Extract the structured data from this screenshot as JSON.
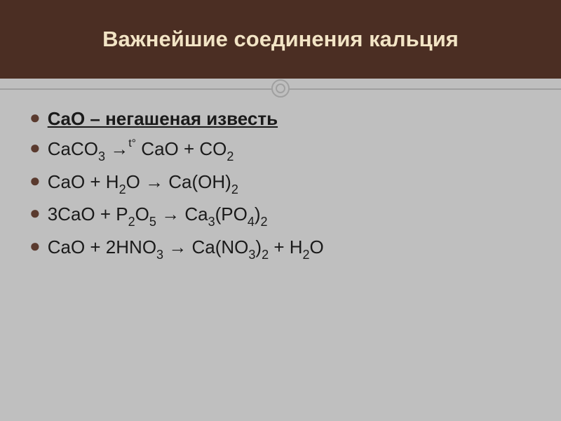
{
  "slide": {
    "title": "Важнейшие соединения кальция",
    "header_bg": "#4b2e23",
    "title_color": "#f2e4c5",
    "body_bg": "#bfbfbf",
    "bullet_color": "#5a3a2e",
    "text_color": "#1a1a1a",
    "divider_color": "#a0a0a0"
  },
  "items": [
    {
      "type": "heading",
      "plain": "CaO – негашеная известь",
      "html": "CaO – негашеная известь"
    },
    {
      "type": "formula",
      "plain": "CaCO3 →t° CaO + CO2",
      "html": "CaCO<sub>3</sub>  →<sup>t°</sup> CaO + CO<sub>2</sub>"
    },
    {
      "type": "formula",
      "plain": "CaO + H2O → Ca(OH)2",
      "html": "CaO + H<sub>2</sub>O → Ca(OH)<sub>2</sub>"
    },
    {
      "type": "formula",
      "plain": "3CaO + P2O5 → Ca3(PO4)2",
      "html": "3CaO + P<sub>2</sub>O<sub>5</sub> → Ca<sub>3</sub>(PO<sub>4</sub>)<sub>2</sub>"
    },
    {
      "type": "formula",
      "plain": "CaO + 2HNO3 → Ca(NO3)2 + H2O",
      "html": "CaO + 2HNO<sub>3</sub> → Ca(NO<sub>3</sub>)<sub>2</sub> + H<sub>2</sub>O"
    }
  ]
}
